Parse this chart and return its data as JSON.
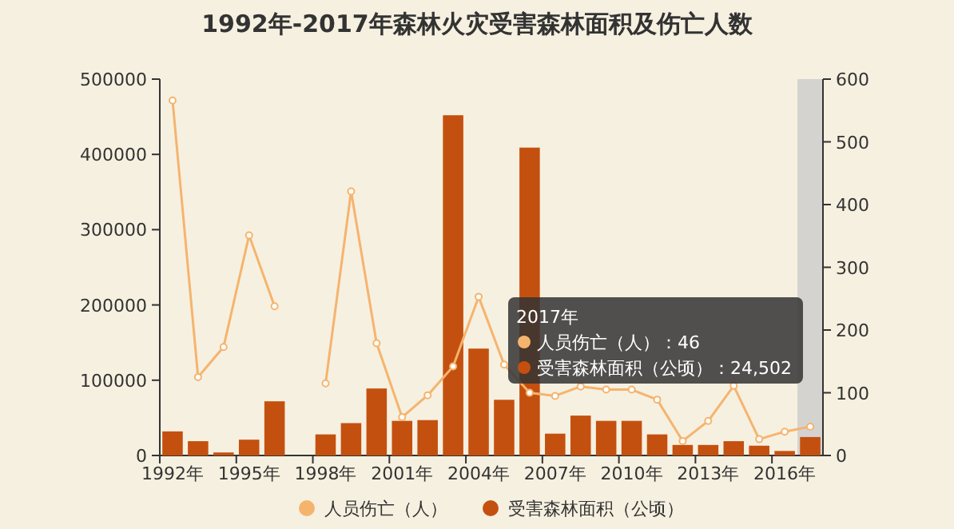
{
  "chart_data": {
    "type": "bar",
    "title": "1992年-2017年森林火灾受害森林面积及伤亡人数",
    "categories": [
      "1992年",
      null,
      null,
      "1995年",
      null,
      null,
      "1998年",
      null,
      null,
      "2001年",
      null,
      null,
      "2004年",
      null,
      null,
      "2007年",
      null,
      null,
      "2010年",
      null,
      null,
      "2013年",
      null,
      null,
      "2016年",
      null
    ],
    "series": [
      {
        "name": "人员伤亡（人）",
        "type": "line",
        "axis": "y2",
        "color": "#f5b46e",
        "values": [
          566,
          125,
          173,
          351,
          238,
          null,
          115,
          421,
          179,
          61,
          96,
          142,
          253,
          145,
          100,
          95,
          110,
          105,
          105,
          89,
          23,
          55,
          111,
          26,
          38,
          46
        ]
      },
      {
        "name": "受害森林面积（公顷）",
        "color": "#c4500f",
        "values": [
          32000,
          19000,
          4000,
          21000,
          72000,
          null,
          28000,
          43000,
          89000,
          46000,
          47000,
          452000,
          142000,
          74000,
          409000,
          29000,
          53000,
          46000,
          46000,
          28000,
          14000,
          14000,
          19000,
          13000,
          6000,
          24502
        ]
      }
    ],
    "ylim": [
      0,
      500000
    ],
    "yticks": [
      0,
      100000,
      200000,
      300000,
      400000,
      500000
    ],
    "y2lim": [
      0,
      600
    ],
    "y2ticks": [
      0,
      100,
      200,
      300,
      400,
      500,
      600
    ],
    "marker": "circle",
    "legend": "bottom",
    "annotations": [
      "2017年",
      "人员伤亡（人）：46",
      "受害森林面积（公顷）：24,502"
    ]
  }
}
